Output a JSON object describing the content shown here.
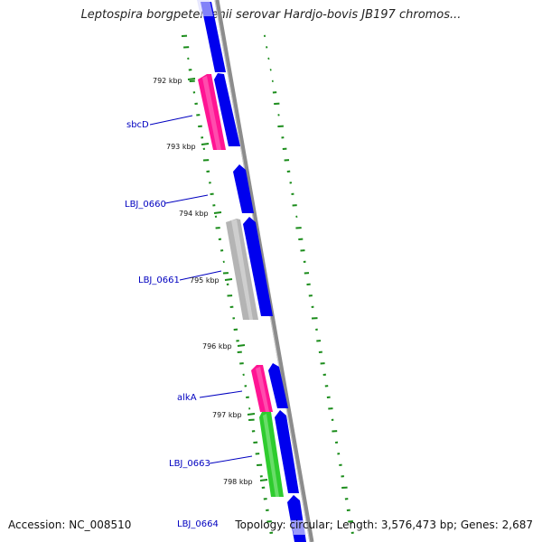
{
  "title": "Leptospira borgpetersenii serovar Hardjo-bovis JB197 chromos...",
  "accession_text": "Accession: NC_008510",
  "summary_text": "Topology: circular; Length: 3,576,473 bp; Genes: 2,687",
  "colors": {
    "backbone": "#8c8c8c",
    "forward_gene": "#0000ee",
    "rRNA_tRNA": "#ff1493",
    "grey_feature": "#b4b4b4",
    "green_feature": "#2ecc2e",
    "gc_ticks": "#1a8c1a",
    "label": "#0000c0"
  },
  "gene_labels": [
    {
      "text": "sbcD"
    },
    {
      "text": "LBJ_0660"
    },
    {
      "text": "LBJ_0661"
    },
    {
      "text": "alkA"
    },
    {
      "text": "LBJ_0663"
    },
    {
      "text": "LBJ_0664"
    }
  ],
  "kbp_labels": [
    "792 kbp",
    "793 kbp",
    "794 kbp",
    "795 kbp",
    "796 kbp",
    "797 kbp",
    "798 kbp"
  ]
}
